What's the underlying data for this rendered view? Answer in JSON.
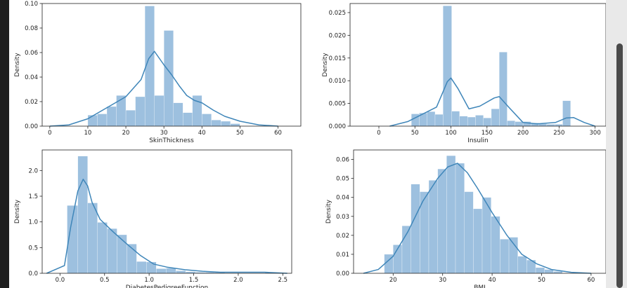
{
  "chart_data": [
    {
      "type": "bar",
      "xlabel": "SkinThickness",
      "ylabel": "Density",
      "xlim": [
        -2,
        66
      ],
      "ylim": [
        0,
        0.1
      ],
      "xticks": [
        0,
        10,
        20,
        30,
        40,
        50,
        60
      ],
      "yticks": [
        0.0,
        0.02,
        0.04,
        0.06,
        0.08,
        0.1
      ],
      "ytick_labels": [
        "0.00",
        "0.02",
        "0.04",
        "0.06",
        "0.08",
        "0.10"
      ],
      "bars": [
        [
          10,
          12.5,
          0.009
        ],
        [
          12.5,
          15,
          0.01
        ],
        [
          15,
          17.5,
          0.016
        ],
        [
          17.5,
          20,
          0.025
        ],
        [
          20,
          22.5,
          0.013
        ],
        [
          22.5,
          25,
          0.024
        ],
        [
          25,
          27.5,
          0.098
        ],
        [
          27.5,
          30,
          0.025
        ],
        [
          30,
          32.5,
          0.078
        ],
        [
          32.5,
          35,
          0.019
        ],
        [
          35,
          37.5,
          0.011
        ],
        [
          37.5,
          40,
          0.025
        ],
        [
          40,
          42.5,
          0.01
        ],
        [
          42.5,
          45,
          0.005
        ],
        [
          45,
          47.5,
          0.004
        ],
        [
          47.5,
          50,
          0.002
        ]
      ],
      "kde": [
        [
          0,
          0.0
        ],
        [
          5,
          0.001
        ],
        [
          10,
          0.006
        ],
        [
          15,
          0.015
        ],
        [
          20,
          0.024
        ],
        [
          24,
          0.038
        ],
        [
          26,
          0.055
        ],
        [
          27.5,
          0.061
        ],
        [
          30,
          0.05
        ],
        [
          32,
          0.042
        ],
        [
          34,
          0.033
        ],
        [
          36,
          0.025
        ],
        [
          38,
          0.021
        ],
        [
          40,
          0.019
        ],
        [
          43,
          0.013
        ],
        [
          46,
          0.008
        ],
        [
          50,
          0.004
        ],
        [
          55,
          0.001
        ],
        [
          60,
          0.0
        ]
      ]
    },
    {
      "type": "bar",
      "xlabel": "Insulin",
      "ylabel": "Density",
      "xlim": [
        -40,
        315
      ],
      "ylim": [
        0,
        0.027
      ],
      "xticks": [
        0,
        50,
        100,
        150,
        200,
        250,
        300
      ],
      "yticks": [
        0.0,
        0.005,
        0.01,
        0.015,
        0.02,
        0.025
      ],
      "ytick_labels": [
        "0.000",
        "0.005",
        "0.010",
        "0.015",
        "0.020",
        "0.025"
      ],
      "bars": [
        [
          45,
          56,
          0.0027
        ],
        [
          56,
          67,
          0.0029
        ],
        [
          67,
          78,
          0.0032
        ],
        [
          78,
          89,
          0.0026
        ],
        [
          89,
          101,
          0.0265
        ],
        [
          101,
          112,
          0.0033
        ],
        [
          112,
          123,
          0.0022
        ],
        [
          123,
          134,
          0.002
        ],
        [
          134,
          145,
          0.0024
        ],
        [
          145,
          156,
          0.0018
        ],
        [
          156,
          167,
          0.0038
        ],
        [
          167,
          178,
          0.0163
        ],
        [
          178,
          189,
          0.0012
        ],
        [
          189,
          200,
          0.001
        ],
        [
          200,
          211,
          0.001
        ],
        [
          211,
          222,
          0.0007
        ],
        [
          222,
          233,
          0.0005
        ],
        [
          233,
          244,
          0.0004
        ],
        [
          244,
          255,
          0.0004
        ],
        [
          255,
          266,
          0.0056
        ]
      ],
      "kde": [
        [
          15,
          0.0
        ],
        [
          40,
          0.001
        ],
        [
          60,
          0.0026
        ],
        [
          80,
          0.0042
        ],
        [
          95,
          0.0098
        ],
        [
          100,
          0.0106
        ],
        [
          110,
          0.0082
        ],
        [
          125,
          0.0038
        ],
        [
          140,
          0.0044
        ],
        [
          160,
          0.0062
        ],
        [
          167,
          0.0065
        ],
        [
          180,
          0.0042
        ],
        [
          200,
          0.0008
        ],
        [
          220,
          0.0005
        ],
        [
          245,
          0.0008
        ],
        [
          260,
          0.0018
        ],
        [
          270,
          0.0019
        ],
        [
          285,
          0.0008
        ],
        [
          300,
          0.0
        ]
      ]
    },
    {
      "type": "bar",
      "xlabel": "DiabetesPedigreeFunction",
      "ylabel": "Density",
      "xlim": [
        -0.2,
        2.6
      ],
      "ylim": [
        0,
        2.4
      ],
      "xticks": [
        0.0,
        0.5,
        1.0,
        1.5,
        2.0,
        2.5
      ],
      "yticks": [
        0.0,
        0.5,
        1.0,
        1.5,
        2.0
      ],
      "ytick_labels": [
        "0.0",
        "0.5",
        "1.0",
        "1.5",
        "2.0"
      ],
      "bars": [
        [
          0.08,
          0.2,
          1.32
        ],
        [
          0.2,
          0.31,
          2.28
        ],
        [
          0.31,
          0.42,
          1.37
        ],
        [
          0.42,
          0.53,
          0.99
        ],
        [
          0.53,
          0.64,
          0.87
        ],
        [
          0.64,
          0.75,
          0.75
        ],
        [
          0.75,
          0.86,
          0.57
        ],
        [
          0.86,
          0.97,
          0.23
        ],
        [
          0.97,
          1.08,
          0.22
        ],
        [
          1.08,
          1.19,
          0.09
        ],
        [
          1.19,
          1.3,
          0.1
        ],
        [
          1.3,
          1.41,
          0.05
        ],
        [
          1.41,
          1.52,
          0.03
        ],
        [
          1.52,
          1.63,
          0.02
        ],
        [
          1.63,
          1.74,
          0.02
        ],
        [
          1.74,
          1.85,
          0.02
        ],
        [
          2.3,
          2.42,
          0.02
        ]
      ],
      "kde": [
        [
          -0.15,
          0.0
        ],
        [
          0.05,
          0.15
        ],
        [
          0.12,
          0.9
        ],
        [
          0.2,
          1.6
        ],
        [
          0.26,
          1.83
        ],
        [
          0.31,
          1.7
        ],
        [
          0.36,
          1.38
        ],
        [
          0.45,
          1.05
        ],
        [
          0.6,
          0.8
        ],
        [
          0.75,
          0.57
        ],
        [
          0.9,
          0.35
        ],
        [
          1.05,
          0.18
        ],
        [
          1.2,
          0.12
        ],
        [
          1.4,
          0.07
        ],
        [
          1.6,
          0.04
        ],
        [
          1.8,
          0.02
        ],
        [
          2.0,
          0.02
        ],
        [
          2.3,
          0.02
        ],
        [
          2.55,
          0.0
        ]
      ]
    },
    {
      "type": "bar",
      "xlabel": "BMI",
      "ylabel": "Density",
      "xlim": [
        12,
        63
      ],
      "ylim": [
        0,
        0.065
      ],
      "xticks": [
        20,
        30,
        40,
        50,
        60
      ],
      "yticks": [
        0.0,
        0.01,
        0.02,
        0.03,
        0.04,
        0.05,
        0.06
      ],
      "ytick_labels": [
        "0.00",
        "0.01",
        "0.02",
        "0.03",
        "0.04",
        "0.05",
        "0.06"
      ],
      "bars": [
        [
          18.2,
          20,
          0.01
        ],
        [
          20,
          21.8,
          0.015
        ],
        [
          21.8,
          23.6,
          0.025
        ],
        [
          23.6,
          25.4,
          0.047
        ],
        [
          25.4,
          27.2,
          0.043
        ],
        [
          27.2,
          29,
          0.049
        ],
        [
          29,
          30.8,
          0.055
        ],
        [
          30.8,
          32.6,
          0.062
        ],
        [
          32.6,
          34.4,
          0.058
        ],
        [
          34.4,
          36.2,
          0.043
        ],
        [
          36.2,
          38,
          0.034
        ],
        [
          38,
          39.8,
          0.04
        ],
        [
          39.8,
          41.6,
          0.03
        ],
        [
          41.6,
          43.4,
          0.018
        ],
        [
          43.4,
          45.2,
          0.019
        ],
        [
          45.2,
          47,
          0.009
        ],
        [
          47,
          48.8,
          0.007
        ],
        [
          48.8,
          50.6,
          0.003
        ],
        [
          50.6,
          52.4,
          0.002
        ],
        [
          52.4,
          54.2,
          0.001
        ]
      ],
      "kde": [
        [
          14,
          0.0
        ],
        [
          17,
          0.002
        ],
        [
          20,
          0.009
        ],
        [
          23,
          0.022
        ],
        [
          26,
          0.038
        ],
        [
          29,
          0.05
        ],
        [
          31,
          0.056
        ],
        [
          33,
          0.058
        ],
        [
          35,
          0.053
        ],
        [
          37,
          0.045
        ],
        [
          40,
          0.032
        ],
        [
          43,
          0.02
        ],
        [
          46,
          0.01
        ],
        [
          49,
          0.005
        ],
        [
          52,
          0.002
        ],
        [
          56,
          0.0005
        ],
        [
          60,
          0.0
        ]
      ]
    }
  ]
}
